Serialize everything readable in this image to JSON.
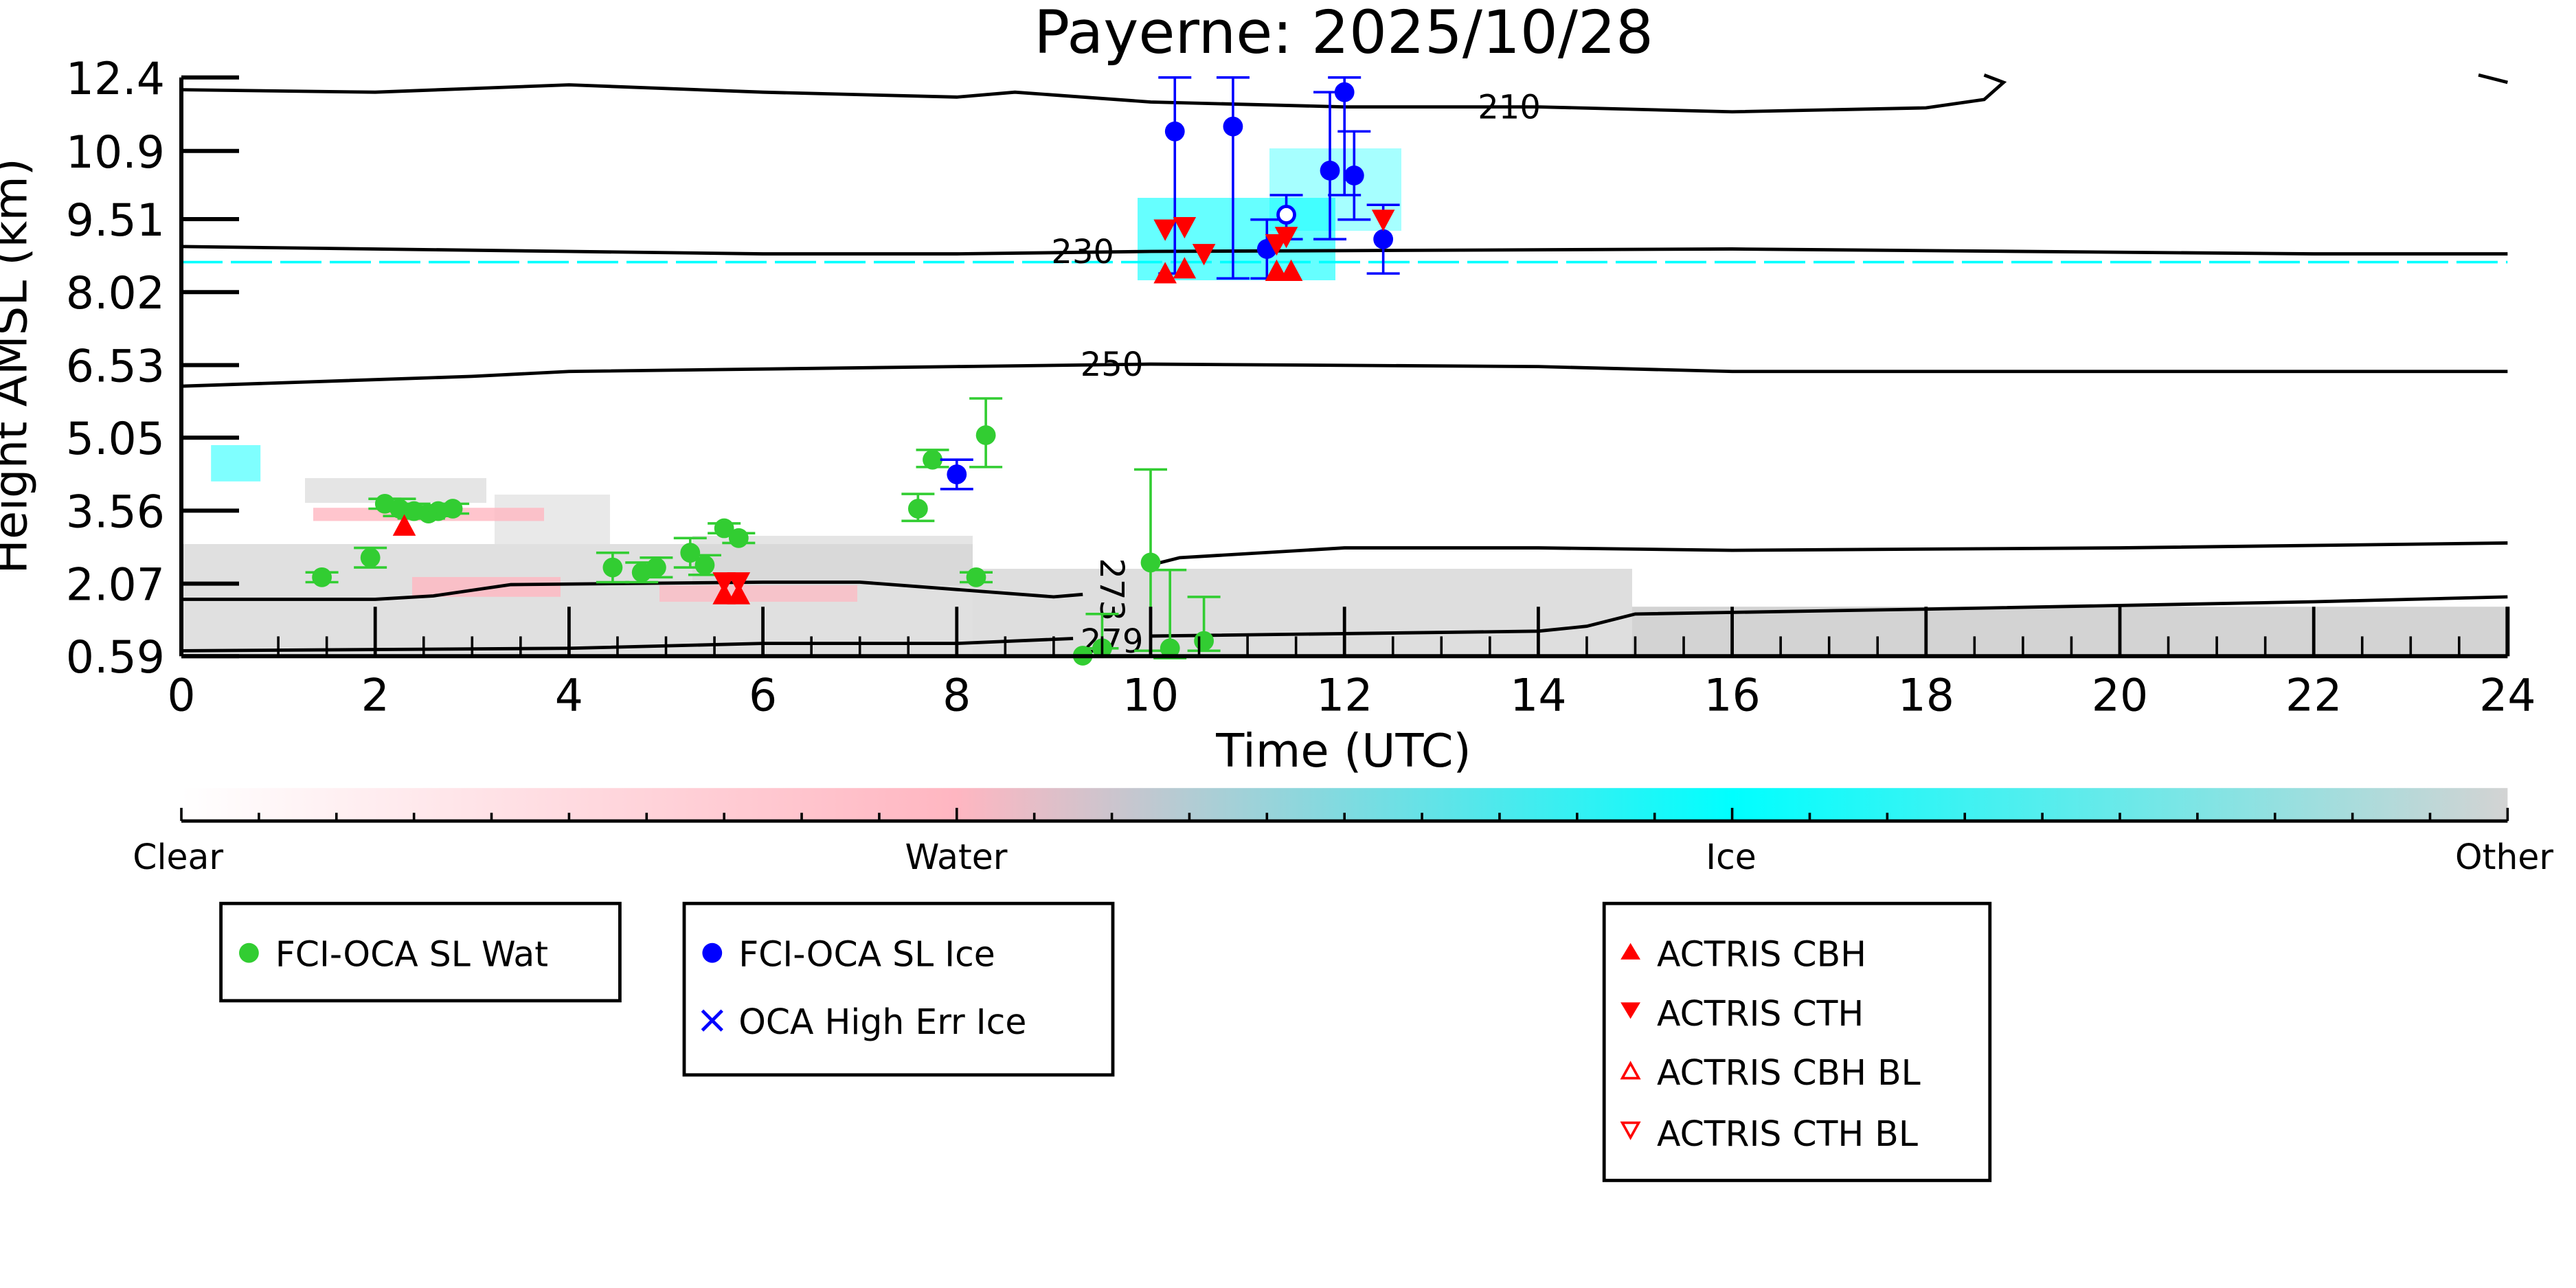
{
  "chart_data": {
    "type": "scatter",
    "title": "Payerne: 2025/10/28",
    "xlabel": "Time (UTC)",
    "ylabel": "Height AMSL (km)",
    "xlim": [
      0,
      24
    ],
    "ylim": [
      0.59,
      12.4
    ],
    "xticks": [
      "0",
      "2",
      "4",
      "6",
      "8",
      "10",
      "12",
      "14",
      "16",
      "18",
      "20",
      "22",
      "24"
    ],
    "yticks": [
      "0.59",
      "2.07",
      "3.56",
      "5.05",
      "6.53",
      "8.02",
      "9.51",
      "10.9",
      "12.4"
    ],
    "ytick_values": [
      0.59,
      2.07,
      3.56,
      5.05,
      6.53,
      8.02,
      9.51,
      10.9,
      12.4
    ],
    "colorbar": {
      "labels": [
        "Clear",
        "Water",
        "Ice",
        "Other"
      ],
      "colors": [
        "#ffffff",
        "#ffb6c1",
        "#00ffff",
        "#d3d3d3"
      ]
    },
    "contours": [
      {
        "label": "210",
        "label_at": [
          13.7,
          11.8
        ],
        "segments": [
          [
            [
              0,
              12.15
            ],
            [
              2,
              12.1
            ],
            [
              4,
              12.25
            ],
            [
              6,
              12.1
            ],
            [
              8,
              12.0
            ],
            [
              8.6,
              12.1
            ],
            [
              10,
              11.9
            ],
            [
              12,
              11.8
            ],
            [
              14,
              11.8
            ],
            [
              16,
              11.7
            ],
            [
              18,
              11.78
            ],
            [
              18.6,
              11.95
            ],
            [
              18.8,
              12.3
            ],
            [
              18.6,
              12.45
            ]
          ],
          [
            [
              23.7,
              12.45
            ],
            [
              24,
              12.3
            ]
          ]
        ]
      },
      {
        "label": "230",
        "label_at": [
          9.3,
          8.85
        ],
        "segments": [
          [
            [
              0,
              8.95
            ],
            [
              4,
              8.85
            ],
            [
              6,
              8.8
            ],
            [
              8,
              8.8
            ],
            [
              10,
              8.85
            ],
            [
              16,
              8.9
            ],
            [
              22,
              8.8
            ],
            [
              24,
              8.8
            ]
          ]
        ]
      },
      {
        "label": "250",
        "label_at": [
          9.6,
          6.55
        ],
        "segments": [
          [
            [
              0,
              6.1
            ],
            [
              3,
              6.3
            ],
            [
              4,
              6.4
            ],
            [
              8,
              6.5
            ],
            [
              10,
              6.55
            ],
            [
              14,
              6.5
            ],
            [
              16,
              6.4
            ],
            [
              24,
              6.4
            ]
          ]
        ]
      },
      {
        "label": "273",
        "label_at": [
          9.6,
          1.95
        ],
        "rotate": 90,
        "segments": [
          [
            [
              0,
              1.75
            ],
            [
              2,
              1.75
            ],
            [
              2.6,
              1.82
            ],
            [
              3.4,
              2.05
            ],
            [
              6,
              2.1
            ],
            [
              7,
              2.1
            ],
            [
              8,
              1.95
            ],
            [
              9.0,
              1.8
            ],
            [
              9.3,
              1.85
            ]
          ],
          [
            [
              10,
              2.45
            ],
            [
              10.3,
              2.6
            ],
            [
              12,
              2.8
            ],
            [
              14,
              2.8
            ],
            [
              16,
              2.75
            ],
            [
              20,
              2.8
            ],
            [
              24,
              2.9
            ]
          ]
        ]
      },
      {
        "label": "279",
        "label_at": [
          9.6,
          0.9
        ],
        "segments": [
          [
            [
              0,
              0.7
            ],
            [
              4,
              0.75
            ],
            [
              6,
              0.85
            ],
            [
              8,
              0.85
            ],
            [
              9.2,
              0.95
            ]
          ],
          [
            [
              10,
              1.0
            ],
            [
              14,
              1.1
            ],
            [
              14.5,
              1.2
            ],
            [
              15,
              1.45
            ],
            [
              18,
              1.55
            ],
            [
              22,
              1.7
            ],
            [
              24,
              1.8
            ]
          ]
        ]
      }
    ],
    "series": [
      {
        "name": "FCI-OCA SL Wat",
        "marker": "circle",
        "color": "#32cd32",
        "points": [
          [
            1.45,
            2.2,
            0.1,
            0.1
          ],
          [
            1.95,
            2.6,
            0.2,
            0.2
          ],
          [
            2.1,
            3.7,
            0.1,
            0.1
          ],
          [
            2.25,
            3.6,
            0.15,
            0.2
          ],
          [
            2.4,
            3.55,
            0.15,
            0.15
          ],
          [
            2.55,
            3.5,
            0.1,
            0.1
          ],
          [
            2.65,
            3.55,
            0.1,
            0.1
          ],
          [
            2.8,
            3.6,
            0.1,
            0.1
          ],
          [
            4.45,
            2.4,
            0.3,
            0.3
          ],
          [
            4.75,
            2.3,
            0.2,
            0.2
          ],
          [
            4.9,
            2.4,
            0.2,
            0.2
          ],
          [
            5.25,
            2.7,
            0.3,
            0.3
          ],
          [
            5.4,
            2.45,
            0.2,
            0.2
          ],
          [
            5.6,
            3.2,
            0.1,
            0.1
          ],
          [
            5.75,
            3.0,
            0.1,
            0.1
          ],
          [
            7.6,
            3.6,
            0.25,
            0.3
          ],
          [
            7.75,
            4.6,
            0.15,
            0.2
          ],
          [
            8.2,
            2.2,
            0.1,
            0.1
          ],
          [
            8.3,
            5.1,
            0.65,
            0.75
          ],
          [
            9.3,
            0.6,
            0,
            0
          ],
          [
            9.5,
            0.75,
            0,
            0.7
          ],
          [
            10.0,
            2.5,
            1.8,
            1.9
          ],
          [
            10.2,
            0.75,
            0.2,
            1.6
          ],
          [
            10.55,
            0.9,
            0.2,
            0.9
          ]
        ]
      },
      {
        "name": "FCI-OCA SL Ice",
        "marker": "circle",
        "color": "#0000ff",
        "points": [
          [
            10.25,
            11.3,
            2.9,
            1.1
          ],
          [
            10.85,
            11.4,
            3.1,
            1.0
          ],
          [
            11.2,
            8.9,
            0.6,
            0.6
          ],
          [
            11.85,
            10.5,
            1.4,
            1.6
          ],
          [
            12.0,
            12.1,
            2.1,
            0.3
          ],
          [
            12.1,
            10.4,
            0.9,
            0.9
          ],
          [
            12.4,
            9.1,
            0.7,
            0.7
          ],
          [
            8.0,
            4.3,
            0.3,
            0.3
          ]
        ]
      },
      {
        "name": "OCA High Err Ice",
        "marker": "x",
        "color": "#0000ff",
        "points": []
      },
      {
        "name": "FCI-OCA SL Ice (open)",
        "marker": "open-circle",
        "color": "#0000ff",
        "points": [
          [
            11.4,
            9.6,
            0.5,
            0.4
          ]
        ]
      },
      {
        "name": "ACTRIS CBH",
        "marker": "triangle-up",
        "color": "#ff0000",
        "points": [
          [
            2.3,
            3.25
          ],
          [
            5.6,
            1.85
          ],
          [
            5.75,
            1.85
          ],
          [
            10.15,
            8.4
          ],
          [
            10.35,
            8.5
          ],
          [
            11.3,
            8.45
          ],
          [
            11.45,
            8.45
          ]
        ]
      },
      {
        "name": "ACTRIS CTH",
        "marker": "triangle-down",
        "color": "#ff0000",
        "points": [
          [
            5.6,
            2.1
          ],
          [
            5.75,
            2.1
          ],
          [
            10.15,
            9.3
          ],
          [
            10.35,
            9.35
          ],
          [
            10.55,
            8.8
          ],
          [
            11.3,
            9.0
          ],
          [
            11.4,
            9.15
          ],
          [
            12.4,
            9.5
          ]
        ]
      },
      {
        "name": "ACTRIS CBH BL",
        "marker": "open-triangle-up",
        "color": "#ff0000",
        "points": []
      },
      {
        "name": "ACTRIS CTH BL",
        "marker": "open-triangle-down",
        "color": "#ff0000",
        "points": []
      }
    ],
    "legends": [
      [
        "FCI-OCA SL Wat"
      ],
      [
        "FCI-OCA SL Ice",
        "OCA High Err Ice"
      ],
      [
        "ACTRIS CBH",
        "ACTRIS CTH",
        "ACTRIS CBH BL",
        "ACTRIS CTH BL"
      ]
    ]
  }
}
